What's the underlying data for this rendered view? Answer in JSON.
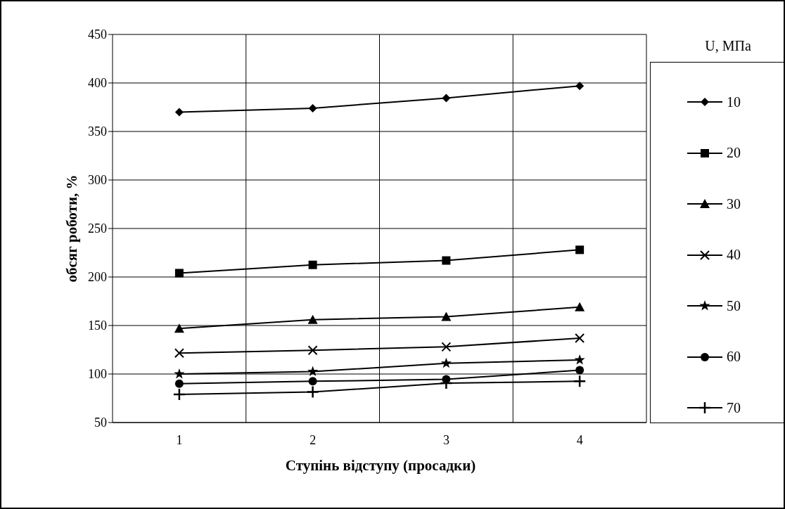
{
  "chart_data": {
    "type": "line",
    "xlabel": "Ступінь відступу (просадки)",
    "ylabel": "обсяг роботи, %",
    "legend_title": "U, МПа",
    "categories": [
      "1",
      "2",
      "3",
      "4"
    ],
    "series": [
      {
        "name": "10",
        "color": "#000000",
        "marker": "diamond",
        "values": [
          370,
          374,
          384.5,
          397
        ]
      },
      {
        "name": "20",
        "color": "#000000",
        "marker": "square",
        "values": [
          204,
          212.5,
          217,
          228
        ]
      },
      {
        "name": "30",
        "color": "#000000",
        "marker": "triangle",
        "values": [
          147,
          156,
          159,
          169
        ]
      },
      {
        "name": "40",
        "color": "#000000",
        "marker": "cross",
        "values": [
          121.5,
          124.5,
          128,
          137
        ]
      },
      {
        "name": "50",
        "color": "#000000",
        "marker": "star",
        "values": [
          100,
          102.5,
          111,
          114.5
        ]
      },
      {
        "name": "60",
        "color": "#000000",
        "marker": "circle",
        "values": [
          90,
          92.5,
          94.5,
          104
        ]
      },
      {
        "name": "70",
        "color": "#000000",
        "marker": "plus",
        "values": [
          79,
          81.5,
          90.5,
          92.5
        ]
      }
    ],
    "ylim": [
      50,
      450
    ],
    "yticks": [
      50,
      100,
      150,
      200,
      250,
      300,
      350,
      400,
      450
    ],
    "grid": true,
    "legend": "right",
    "line_style": "solid"
  }
}
